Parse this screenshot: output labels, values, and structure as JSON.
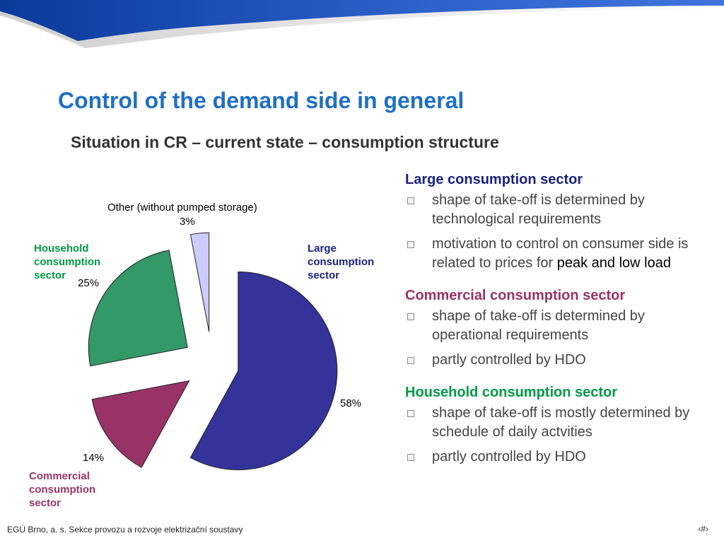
{
  "slide": {
    "title": "Control of the demand side in general",
    "subtitle": "Situation in CR – current state – consumption structure"
  },
  "colors": {
    "title": "#1f6fc5",
    "large": "#33339a",
    "commercial": "#993366",
    "household": "#339966",
    "other": "#ccccff",
    "large_heading": "#1a237e",
    "commercial_heading": "#993366",
    "household_heading": "#009944"
  },
  "chart_data": {
    "type": "pie",
    "exploded": true,
    "series": [
      {
        "name": "Large consumption sector",
        "value": 58,
        "label": "58%",
        "color": "#33339a"
      },
      {
        "name": "Commercial consumption sector",
        "value": 14,
        "label": "14%",
        "color": "#993366"
      },
      {
        "name": "Household consumption sector",
        "value": 25,
        "label": "25%",
        "color": "#339966"
      },
      {
        "name": "Other (without pumped storage)",
        "value": 3,
        "label": "3%",
        "color": "#ccccff"
      }
    ]
  },
  "chart_labels": {
    "large_name": [
      "Large",
      "consumption",
      "sector"
    ],
    "large_pct": "58%",
    "commercial_name": [
      "Commercial",
      "consumption",
      "sector"
    ],
    "commercial_pct": "14%",
    "household_name": [
      "Household",
      "consumption",
      "sector"
    ],
    "household_pct": "25%",
    "other_name": "Other (without pumped storage)",
    "other_pct": "3%"
  },
  "sections": {
    "large": {
      "heading": "Large consumption sector",
      "bullets": [
        {
          "text": "shape of take-off is determined by technological requirements"
        },
        {
          "text": "motivation to control on consumer side is related to prices for ",
          "emphasis": "peak and low load"
        }
      ]
    },
    "commercial": {
      "heading": "Commercial consumption sector",
      "bullets": [
        {
          "text": "shape of take-off is determined by operational requirements"
        },
        {
          "text": "partly controlled by HDO"
        }
      ]
    },
    "household": {
      "heading": "Household consumption sector",
      "bullets": [
        {
          "text": "shape of take-off is mostly determined by schedule of daily actvities"
        },
        {
          "text": "partly controlled by HDO"
        }
      ]
    }
  },
  "footer": {
    "left": "EGÚ Brno, a. s.   Sekce provozu a rozvoje elektrizační soustavy",
    "page_num": "‹#›"
  }
}
